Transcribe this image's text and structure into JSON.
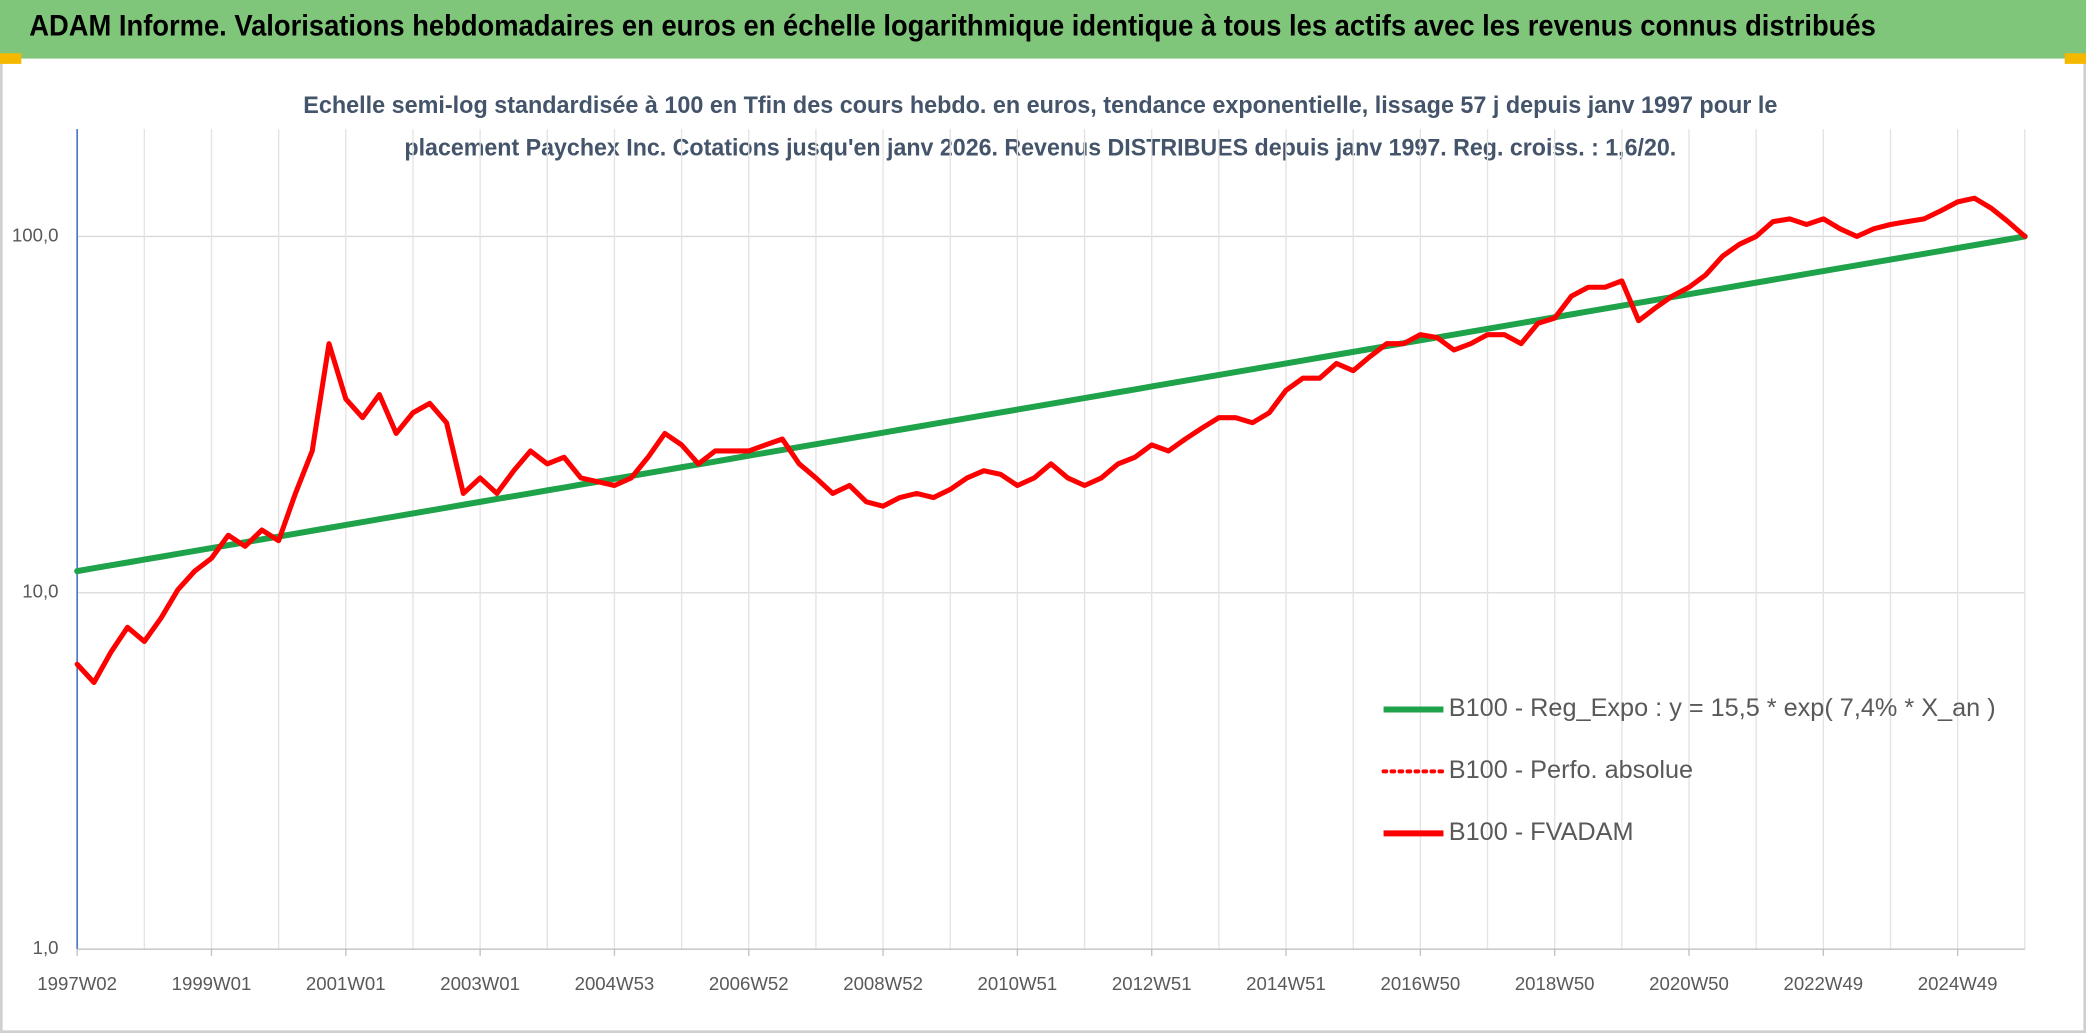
{
  "chart_data": {
    "type": "line",
    "title": "ADAM Informe. Valorisations hebdomadaires en euros en échelle logarithmique identique à tous les actifs avec les revenus connus distribués",
    "subtitle": [
      "Echelle semi-log standardisée à 100 en Tfin des cours hebdo. en euros, tendance exponentielle, lissage 57 j depuis janv 1997 pour le",
      "placement Paychex Inc. Cotations jusqu'en janv 2026. Revenus DISTRIBUES depuis janv 1997. Reg. croiss. : 1,6/20."
    ],
    "categories": [
      "1997W02",
      null,
      null,
      null,
      null,
      null,
      null,
      null,
      "1999W01",
      null,
      null,
      null,
      null,
      null,
      null,
      null,
      "2001W01",
      null,
      null,
      null,
      null,
      null,
      null,
      null,
      "2003W01",
      null,
      null,
      null,
      null,
      null,
      null,
      null,
      "2004W53",
      null,
      null,
      null,
      null,
      null,
      null,
      null,
      "2006W52",
      null,
      null,
      null,
      null,
      null,
      null,
      null,
      "2008W52",
      null,
      null,
      null,
      null,
      null,
      null,
      null,
      "2010W51",
      null,
      null,
      null,
      null,
      null,
      null,
      null,
      "2012W51",
      null,
      null,
      null,
      null,
      null,
      null,
      null,
      "2014W51",
      null,
      null,
      null,
      null,
      null,
      null,
      null,
      "2016W50",
      null,
      null,
      null,
      null,
      null,
      null,
      null,
      "2018W50",
      null,
      null,
      null,
      null,
      null,
      null,
      null,
      "2020W50",
      null,
      null,
      null,
      null,
      null,
      null,
      null,
      "2022W49",
      null,
      null,
      null,
      null,
      null,
      null,
      null,
      "2024W49",
      null,
      null,
      null,
      null
    ],
    "log_scale": true,
    "grid": true,
    "ylim": [
      1,
      200
    ],
    "yticks": [
      {
        "value": 1,
        "label": "1,0"
      },
      {
        "value": 10,
        "label": "10,0"
      },
      {
        "value": 100,
        "label": "100,0"
      }
    ],
    "series": [
      {
        "name": "B100 - Reg_Expo : y = 15,5 * exp( 7,4% *  X_an )",
        "color": "#1fa34a",
        "dash": "solid",
        "values": [
          11.5,
          11.72,
          11.94,
          12.16,
          12.39,
          12.62,
          12.86,
          13.1,
          13.35,
          13.6,
          13.86,
          14.12,
          14.38,
          14.65,
          14.93,
          15.21,
          15.5,
          15.79,
          16.09,
          16.39,
          16.7,
          17.01,
          17.33,
          17.66,
          17.99,
          18.33,
          18.67,
          19.02,
          19.38,
          19.74,
          20.12,
          20.49,
          20.88,
          21.27,
          21.67,
          22.08,
          22.5,
          22.92,
          23.35,
          23.79,
          24.24,
          24.7,
          25.16,
          25.63,
          26.12,
          26.61,
          27.11,
          27.62,
          28.14,
          28.67,
          29.21,
          29.76,
          30.32,
          30.89,
          31.47,
          32.06,
          32.66,
          33.28,
          33.9,
          34.54,
          35.19,
          35.85,
          36.53,
          37.21,
          37.92,
          38.63,
          39.36,
          40.1,
          40.85,
          41.62,
          42.41,
          43.2,
          44.01,
          44.84,
          45.69,
          46.55,
          47.42,
          48.31,
          49.22,
          50.15,
          51.09,
          52.05,
          53.03,
          54.03,
          55.05,
          56.08,
          57.14,
          58.21,
          59.31,
          60.42,
          61.56,
          62.72,
          63.9,
          65.1,
          66.33,
          67.58,
          68.85,
          70.14,
          71.46,
          72.81,
          74.18,
          75.57,
          76.99,
          78.44,
          79.92,
          81.42,
          82.95,
          84.51,
          86.1,
          87.72,
          89.37,
          91.05,
          92.77,
          94.51,
          96.29,
          98.1,
          100
        ]
      },
      {
        "name": "B100 - Perfo. absolue",
        "color": "#ff0000",
        "dash": "dotted",
        "values": [
          6.3,
          5.6,
          6.8,
          8,
          7.3,
          8.5,
          10.2,
          11.5,
          12.5,
          14.5,
          13.5,
          15,
          14,
          19,
          25,
          50,
          35,
          31,
          36,
          28,
          32,
          34,
          30,
          19,
          21,
          19,
          22,
          25,
          23,
          24,
          21,
          20.5,
          20,
          21,
          24,
          28,
          26,
          23,
          25,
          25,
          25,
          26,
          27,
          23,
          21,
          19,
          20,
          18,
          17.5,
          18.5,
          19,
          18.5,
          19.5,
          21,
          22,
          21.5,
          20,
          21,
          23,
          21,
          20,
          21,
          23,
          24,
          26,
          25,
          27,
          29,
          31,
          31,
          30,
          32,
          37,
          40,
          40,
          44,
          42,
          46,
          50,
          50,
          53,
          52,
          48,
          50,
          53,
          53,
          50,
          57,
          59,
          68,
          72,
          72,
          75,
          58,
          63,
          68,
          72,
          78,
          88,
          95,
          100,
          110,
          112,
          108,
          112,
          105,
          100,
          105,
          108,
          110,
          112,
          118,
          125,
          128,
          120,
          110,
          100
        ]
      },
      {
        "name": "B100 - FVADAM",
        "color": "#ff0000",
        "dash": "solid",
        "values": [
          6.3,
          5.6,
          6.8,
          8,
          7.3,
          8.5,
          10.2,
          11.5,
          12.5,
          14.5,
          13.5,
          15,
          14,
          19,
          25,
          50,
          35,
          31,
          36,
          28,
          32,
          34,
          30,
          19,
          21,
          19,
          22,
          25,
          23,
          24,
          21,
          20.5,
          20,
          21,
          24,
          28,
          26,
          23,
          25,
          25,
          25,
          26,
          27,
          23,
          21,
          19,
          20,
          18,
          17.5,
          18.5,
          19,
          18.5,
          19.5,
          21,
          22,
          21.5,
          20,
          21,
          23,
          21,
          20,
          21,
          23,
          24,
          26,
          25,
          27,
          29,
          31,
          31,
          30,
          32,
          37,
          40,
          40,
          44,
          42,
          46,
          50,
          50,
          53,
          52,
          48,
          50,
          53,
          53,
          50,
          57,
          59,
          68,
          72,
          72,
          75,
          58,
          63,
          68,
          72,
          78,
          88,
          95,
          100,
          110,
          112,
          108,
          112,
          105,
          100,
          105,
          108,
          110,
          112,
          118,
          125,
          128,
          120,
          110,
          100
        ]
      }
    ]
  }
}
